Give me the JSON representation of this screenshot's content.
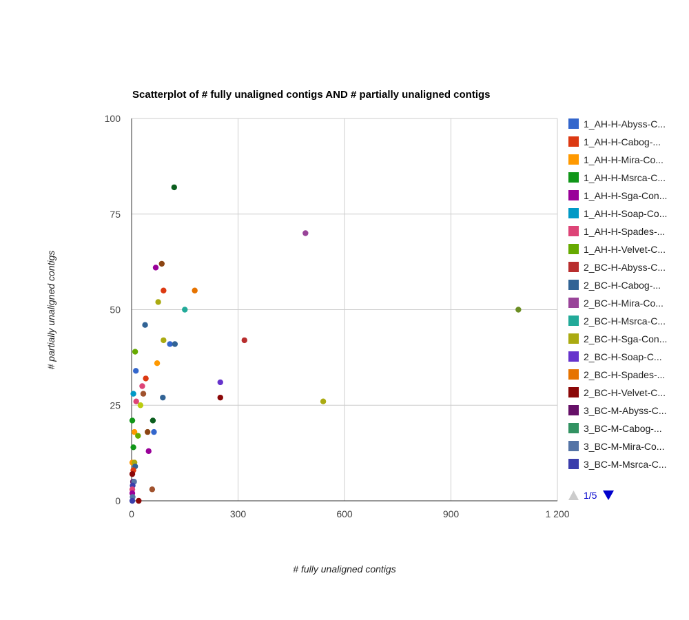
{
  "chart_data": {
    "type": "scatter",
    "title": "Scatterplot of # fully unaligned contigs AND # partially unaligned contigs",
    "xlabel": "# fully unaligned contigs",
    "ylabel": "# partially unaligned contigs",
    "xlim": [
      0,
      1200
    ],
    "ylim": [
      0,
      100
    ],
    "xticks": [
      0,
      300,
      600,
      900,
      1200
    ],
    "xtick_labels": [
      "0",
      "300",
      "600",
      "900",
      "1 200"
    ],
    "yticks": [
      0,
      25,
      50,
      75,
      100
    ],
    "ytick_labels": [
      "0",
      "25",
      "50",
      "75",
      "100"
    ],
    "grid": true,
    "legend_position": "right",
    "legend": [
      {
        "label": "1_AH-H-Abyss-C...",
        "color": "#3366cc"
      },
      {
        "label": "1_AH-H-Cabog-...",
        "color": "#dc3912"
      },
      {
        "label": "1_AH-H-Mira-Co...",
        "color": "#ff9900"
      },
      {
        "label": "1_AH-H-Msrca-C...",
        "color": "#109618"
      },
      {
        "label": "1_AH-H-Sga-Con...",
        "color": "#990099"
      },
      {
        "label": "1_AH-H-Soap-Co...",
        "color": "#0099c6"
      },
      {
        "label": "1_AH-H-Spades-...",
        "color": "#dd4477"
      },
      {
        "label": "1_AH-H-Velvet-C...",
        "color": "#66aa00"
      },
      {
        "label": "2_BC-H-Abyss-C...",
        "color": "#b82e2e"
      },
      {
        "label": "2_BC-H-Cabog-...",
        "color": "#316395"
      },
      {
        "label": "2_BC-H-Mira-Co...",
        "color": "#994499"
      },
      {
        "label": "2_BC-H-Msrca-C...",
        "color": "#22aa99"
      },
      {
        "label": "2_BC-H-Sga-Con...",
        "color": "#aaaa11"
      },
      {
        "label": "2_BC-H-Soap-C...",
        "color": "#6633cc"
      },
      {
        "label": "2_BC-H-Spades-...",
        "color": "#e67300"
      },
      {
        "label": "2_BC-H-Velvet-C...",
        "color": "#8b0707"
      },
      {
        "label": "3_BC-M-Abyss-C...",
        "color": "#651067"
      },
      {
        "label": "3_BC-M-Cabog-...",
        "color": "#329262"
      },
      {
        "label": "3_BC-M-Mira-Co...",
        "color": "#5574a6"
      },
      {
        "label": "3_BC-M-Msrca-C...",
        "color": "#3b3eac"
      }
    ],
    "pager": {
      "text": "1/5"
    },
    "points": [
      {
        "x": 120,
        "y": 82,
        "color": "#0b5e1e"
      },
      {
        "x": 490,
        "y": 70,
        "color": "#994499"
      },
      {
        "x": 1090,
        "y": 50,
        "color": "#6b8e23"
      },
      {
        "x": 85,
        "y": 62,
        "color": "#8b4513"
      },
      {
        "x": 68,
        "y": 61,
        "color": "#990099"
      },
      {
        "x": 90,
        "y": 55,
        "color": "#dc3912"
      },
      {
        "x": 178,
        "y": 55,
        "color": "#e67300"
      },
      {
        "x": 75,
        "y": 52,
        "color": "#aaaa11"
      },
      {
        "x": 150,
        "y": 50,
        "color": "#22aa99"
      },
      {
        "x": 38,
        "y": 46,
        "color": "#316395"
      },
      {
        "x": 318,
        "y": 42,
        "color": "#b82e2e"
      },
      {
        "x": 90,
        "y": 42,
        "color": "#aaaa11"
      },
      {
        "x": 108,
        "y": 41,
        "color": "#3366cc"
      },
      {
        "x": 122,
        "y": 41,
        "color": "#316395"
      },
      {
        "x": 10,
        "y": 39,
        "color": "#66aa00"
      },
      {
        "x": 72,
        "y": 36,
        "color": "#ff9900"
      },
      {
        "x": 12,
        "y": 34,
        "color": "#3366cc"
      },
      {
        "x": 40,
        "y": 32,
        "color": "#dc3912"
      },
      {
        "x": 250,
        "y": 31,
        "color": "#6633cc"
      },
      {
        "x": 30,
        "y": 30,
        "color": "#dd4477"
      },
      {
        "x": 5,
        "y": 28,
        "color": "#0099c6"
      },
      {
        "x": 33,
        "y": 28,
        "color": "#a0522d"
      },
      {
        "x": 88,
        "y": 27,
        "color": "#316395"
      },
      {
        "x": 250,
        "y": 27,
        "color": "#8b0707"
      },
      {
        "x": 13,
        "y": 26,
        "color": "#dd4477"
      },
      {
        "x": 540,
        "y": 26,
        "color": "#aaaa11"
      },
      {
        "x": 25,
        "y": 25,
        "color": "#bbcc11"
      },
      {
        "x": 2,
        "y": 21,
        "color": "#109618"
      },
      {
        "x": 60,
        "y": 21,
        "color": "#0b5e1e"
      },
      {
        "x": 8,
        "y": 18,
        "color": "#ff9900"
      },
      {
        "x": 45,
        "y": 18,
        "color": "#8b4513"
      },
      {
        "x": 63,
        "y": 18,
        "color": "#3366cc"
      },
      {
        "x": 18,
        "y": 17,
        "color": "#66aa00"
      },
      {
        "x": 5,
        "y": 14,
        "color": "#109618"
      },
      {
        "x": 48,
        "y": 13,
        "color": "#990099"
      },
      {
        "x": 2,
        "y": 10,
        "color": "#ff9900"
      },
      {
        "x": 8,
        "y": 10,
        "color": "#aaaa11"
      },
      {
        "x": 10,
        "y": 9,
        "color": "#316395"
      },
      {
        "x": 5,
        "y": 8,
        "color": "#dc3912"
      },
      {
        "x": 2,
        "y": 7,
        "color": "#8b0707"
      },
      {
        "x": 4,
        "y": 5,
        "color": "#651067"
      },
      {
        "x": 7,
        "y": 5,
        "color": "#5574a6"
      },
      {
        "x": 3,
        "y": 4,
        "color": "#3b3eac"
      },
      {
        "x": 2,
        "y": 3,
        "color": "#dd4477"
      },
      {
        "x": 58,
        "y": 3,
        "color": "#a0522d"
      },
      {
        "x": 2,
        "y": 2,
        "color": "#990099"
      },
      {
        "x": 3,
        "y": 1,
        "color": "#5574a6"
      },
      {
        "x": 20,
        "y": 0,
        "color": "#8b0707"
      },
      {
        "x": 2,
        "y": 0,
        "color": "#3b3eac"
      }
    ]
  }
}
